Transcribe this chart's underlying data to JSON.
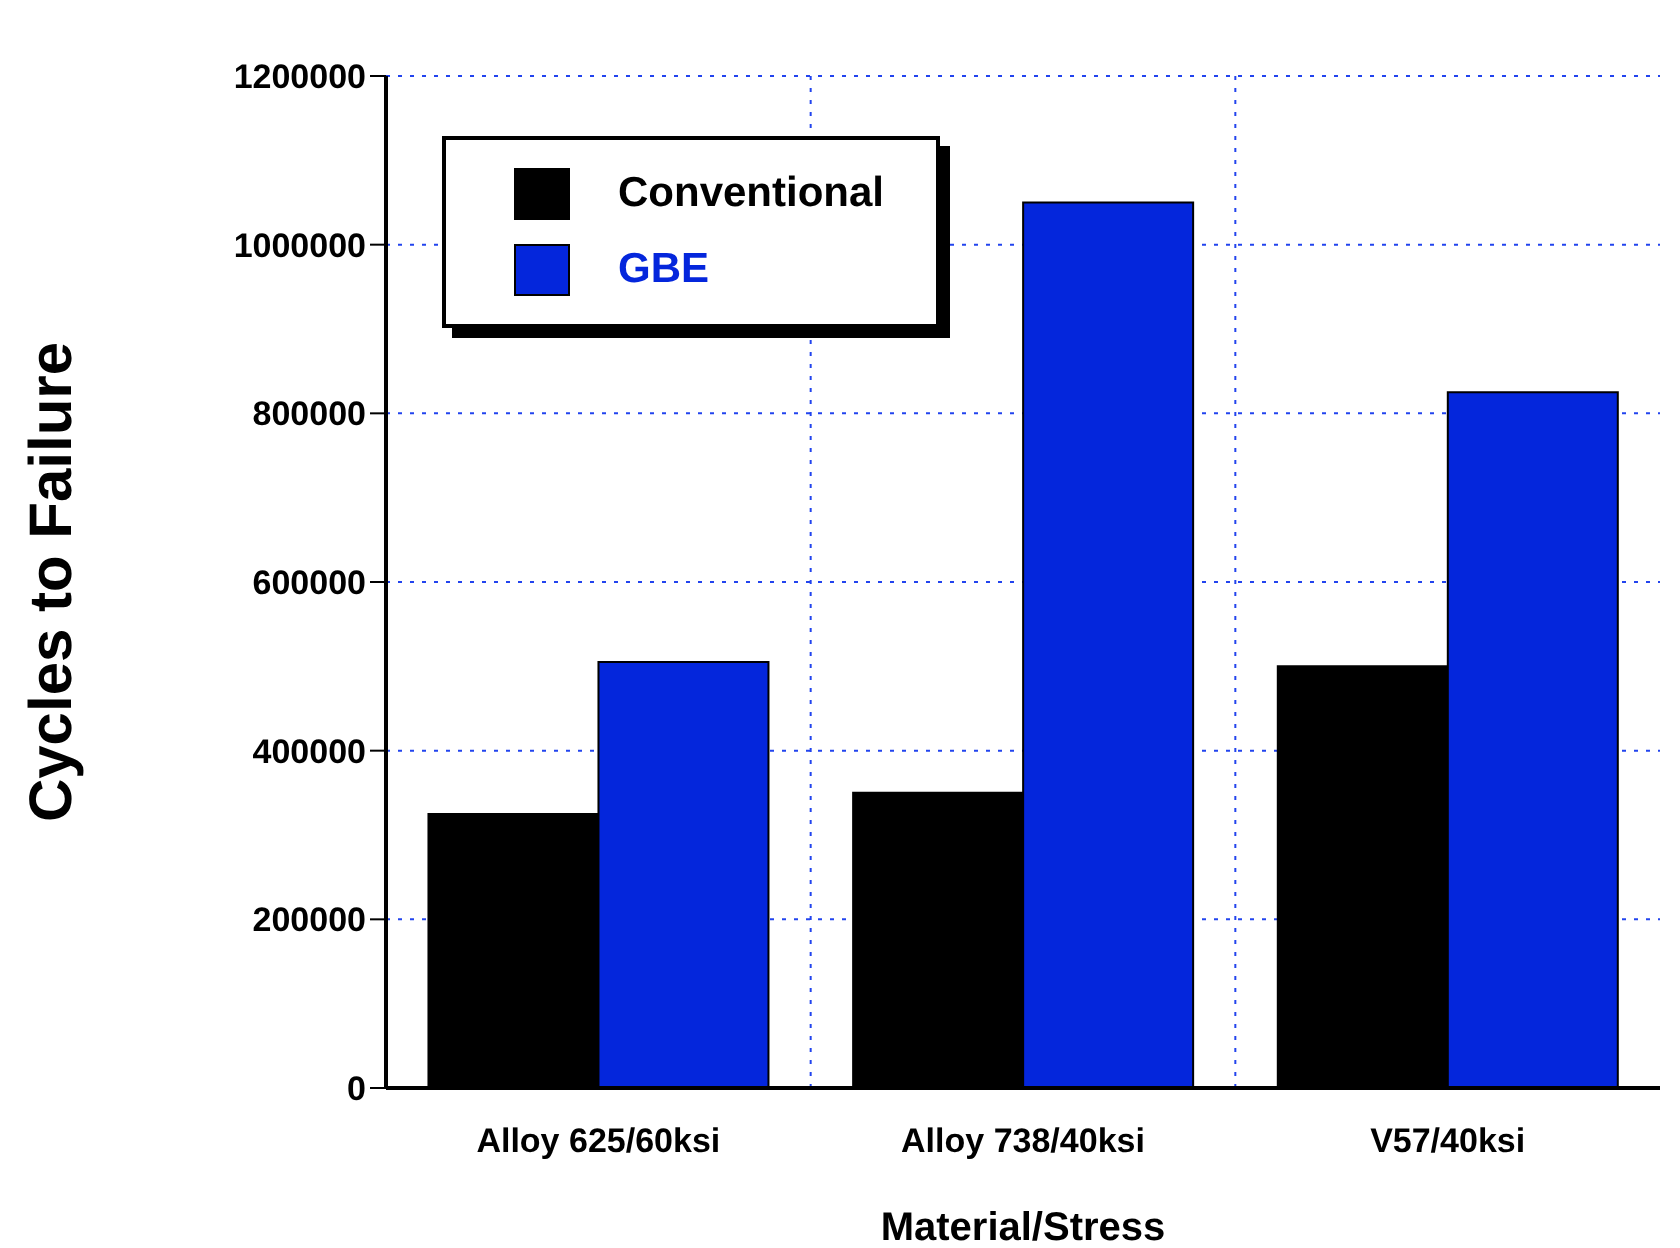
{
  "chart_data": {
    "type": "bar",
    "xlabel": "Material/Stress",
    "ylabel": "Cycles to Failure",
    "categories": [
      "Alloy 625/60ksi",
      "Alloy 738/40ksi",
      "V57/40ksi"
    ],
    "series": [
      {
        "name": "Conventional",
        "color": "#000000",
        "values": [
          325000,
          350000,
          500000
        ]
      },
      {
        "name": "GBE",
        "color": "#0426dc",
        "values": [
          505000,
          1050000,
          825000
        ]
      }
    ],
    "ylim": [
      0,
      1200000
    ],
    "yticks": [
      0,
      200000,
      400000,
      600000,
      800000,
      1000000,
      1200000
    ],
    "grid": true,
    "legend": "top left"
  }
}
